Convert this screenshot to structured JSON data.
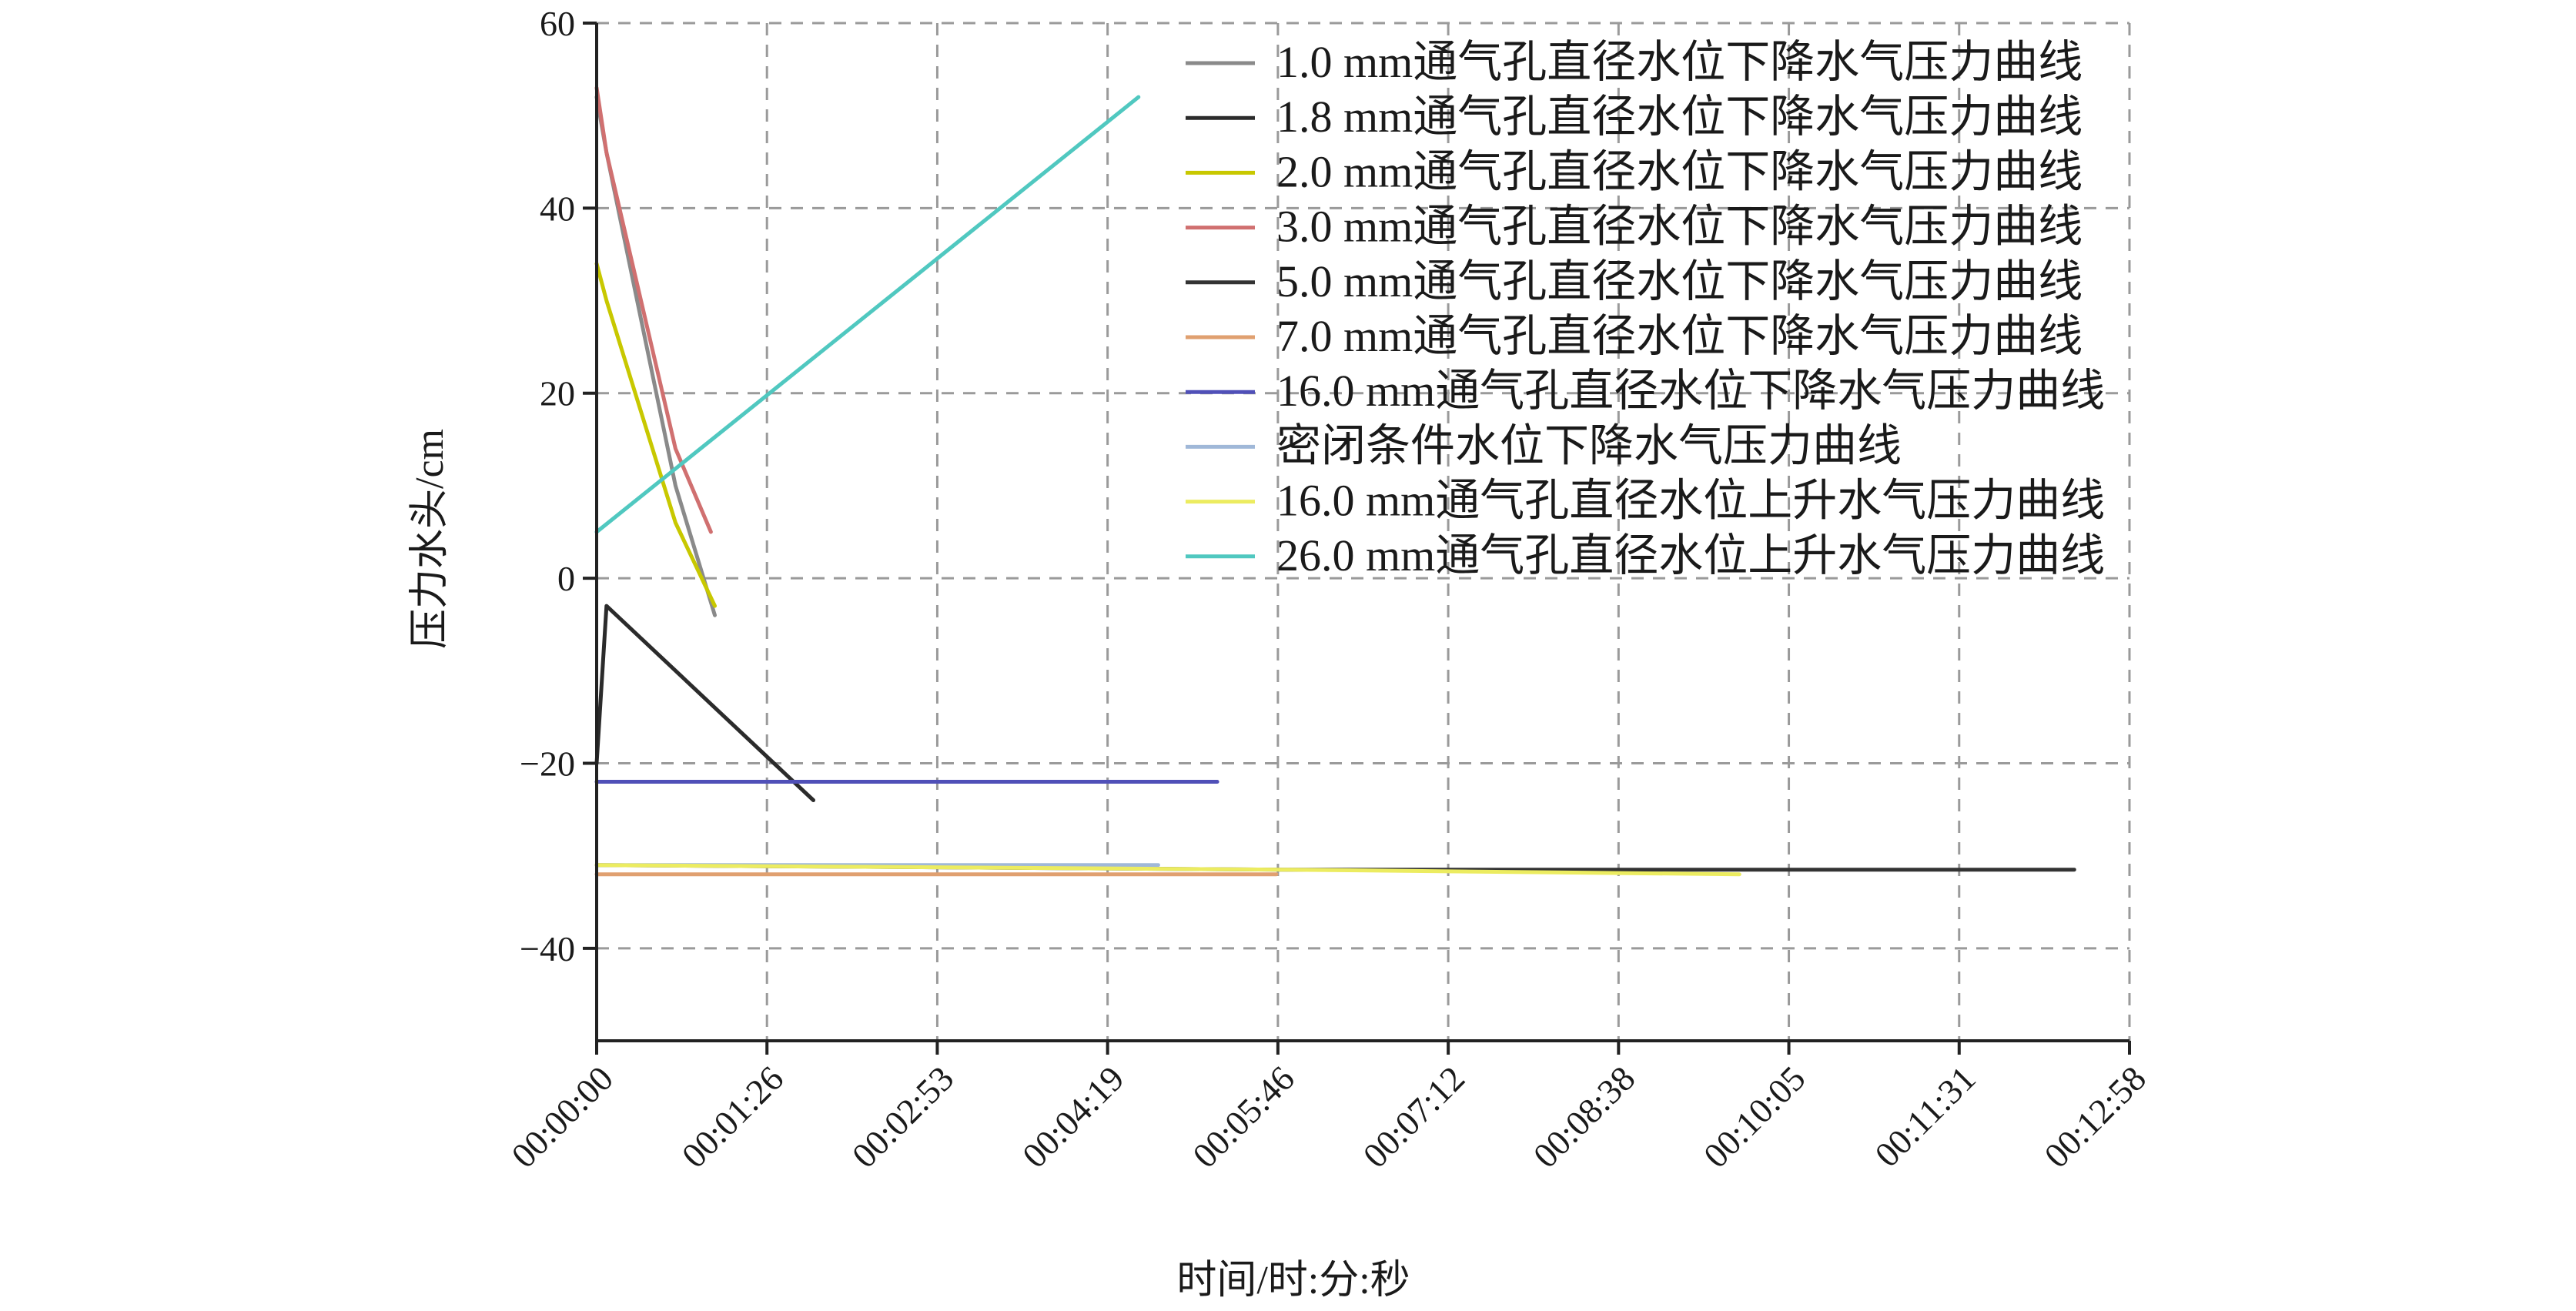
{
  "chart_data": {
    "type": "line",
    "xlabel": "时间/时:分:秒",
    "ylabel": "压力水头/cm",
    "xlim_seconds": [
      0,
      778
    ],
    "ylim": [
      -50,
      60
    ],
    "x_ticks": [
      "00:00:00",
      "00:01:26",
      "00:02:53",
      "00:04:19",
      "00:05:46",
      "00:07:12",
      "00:08:38",
      "00:10:05",
      "00:11:31",
      "00:12:58"
    ],
    "y_ticks": [
      60,
      40,
      20,
      0,
      -20,
      -40
    ],
    "grid": true,
    "legend_position": "top-right",
    "series": [
      {
        "name": "1.0 mm通气孔直径水位下降水气压力曲线",
        "color": "#8a8a8a",
        "x": [
          0,
          5,
          40,
          60
        ],
        "y": [
          52,
          46,
          10,
          -4
        ]
      },
      {
        "name": "1.8 mm通气孔直径水位下降水气压力曲线",
        "color": "#2b2b2b",
        "x": [
          0,
          5,
          30,
          60,
          90,
          110
        ],
        "y": [
          -20,
          -3,
          -8,
          -14,
          -20,
          -24
        ]
      },
      {
        "name": "2.0 mm通气孔直径水位下降水气压力曲线",
        "color": "#c8c800",
        "x": [
          0,
          5,
          40,
          60
        ],
        "y": [
          34,
          30,
          6,
          -3
        ]
      },
      {
        "name": "3.0 mm通气孔直径水位下降水气压力曲线",
        "color": "#d07070",
        "x": [
          0,
          5,
          40,
          58
        ],
        "y": [
          53,
          46,
          14,
          5
        ]
      },
      {
        "name": "5.0 mm通气孔直径水位下降水气压力曲线",
        "color": "#333333",
        "x": [
          0,
          350,
          750
        ],
        "y": [
          -31,
          -31.5,
          -31.5
        ]
      },
      {
        "name": "7.0 mm通气孔直径水位下降水气压力曲线",
        "color": "#e0a070",
        "x": [
          0,
          345
        ],
        "y": [
          -32,
          -32
        ]
      },
      {
        "name": "16.0 mm通气孔直径水位下降水气压力曲线",
        "color": "#5050b8",
        "x": [
          0,
          315
        ],
        "y": [
          -22,
          -22
        ]
      },
      {
        "name": "密闭条件水位下降水气压力曲线",
        "color": "#a0b8d8",
        "x": [
          0,
          285
        ],
        "y": [
          -31,
          -31
        ]
      },
      {
        "name": "16.0 mm通气孔直径水位上升水气压力曲线",
        "color": "#ecec60",
        "x": [
          0,
          350,
          580
        ],
        "y": [
          -31,
          -31.5,
          -32
        ]
      },
      {
        "name": "26.0 mm通气孔直径水位上升水气压力曲线",
        "color": "#50c8c0",
        "x": [
          0,
          275
        ],
        "y": [
          5,
          52
        ]
      }
    ]
  }
}
